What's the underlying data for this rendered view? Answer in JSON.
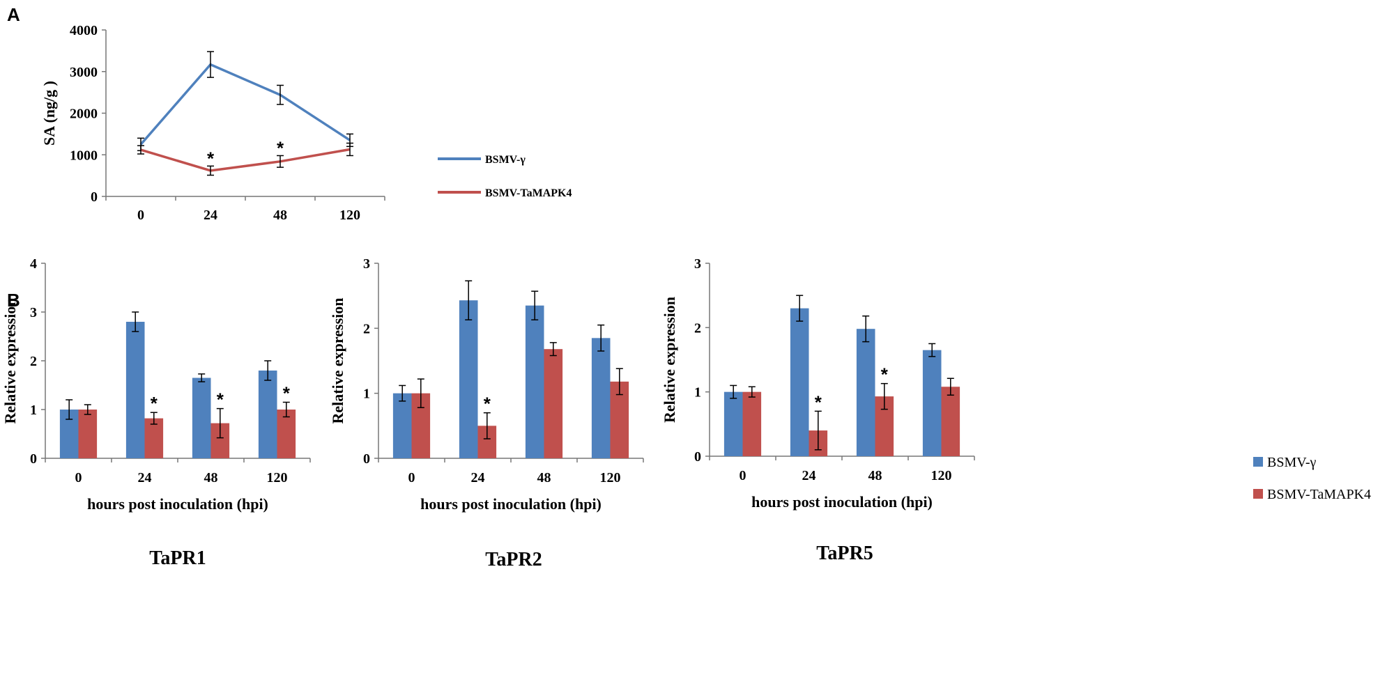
{
  "colors": {
    "blue": "#4F81BD",
    "red": "#C0504D"
  },
  "chart_data": [
    {
      "panel": "A",
      "type": "line",
      "categories": [
        "0",
        "24",
        "48",
        "120"
      ],
      "ylabel": "SA (ng/g )",
      "xlabel": "",
      "ylim": [
        0,
        4000
      ],
      "yticks": [
        0,
        1000,
        2000,
        3000,
        4000
      ],
      "series": [
        {
          "name": "BSMV-γ",
          "color": "#4F81BD",
          "values": [
            1250,
            3170,
            2440,
            1350
          ],
          "errors": [
            150,
            310,
            230,
            150
          ]
        },
        {
          "name": "BSMV-TaMAPK4",
          "color": "#C0504D",
          "values": [
            1120,
            620,
            840,
            1130
          ],
          "errors": [
            100,
            110,
            140,
            150
          ]
        }
      ],
      "significant": [
        "24",
        "48"
      ],
      "significance_mark": "*"
    },
    {
      "panel": "B",
      "type": "bar",
      "title": "TaPR1",
      "categories": [
        "0",
        "24",
        "48",
        "120"
      ],
      "ylabel": "Relative expression",
      "xlabel": "hours post inoculation (hpi)",
      "ylim": [
        0,
        4
      ],
      "yticks": [
        0,
        1,
        2,
        3,
        4
      ],
      "series": [
        {
          "name": "BSMV-γ",
          "color": "#4F81BD",
          "values": [
            1.0,
            2.8,
            1.65,
            1.8
          ],
          "errors": [
            0.2,
            0.2,
            0.08,
            0.2
          ]
        },
        {
          "name": "BSMV-TaMAPK4",
          "color": "#C0504D",
          "values": [
            1.0,
            0.82,
            0.72,
            1.0
          ],
          "errors": [
            0.1,
            0.12,
            0.3,
            0.15
          ]
        }
      ],
      "significant": [
        "24",
        "48",
        "120"
      ],
      "significance_mark": "*"
    },
    {
      "type": "bar",
      "title": "TaPR2",
      "categories": [
        "0",
        "24",
        "48",
        "120"
      ],
      "ylabel": "Relative expression",
      "xlabel": "hours post inoculation (hpi)",
      "ylim": [
        0,
        3
      ],
      "yticks": [
        0,
        1,
        2,
        3
      ],
      "series": [
        {
          "name": "BSMV-γ",
          "color": "#4F81BD",
          "values": [
            1.0,
            2.43,
            2.35,
            1.85
          ],
          "errors": [
            0.12,
            0.3,
            0.22,
            0.2
          ]
        },
        {
          "name": "BSMV-TaMAPK4",
          "color": "#C0504D",
          "values": [
            1.0,
            0.5,
            1.68,
            1.18
          ],
          "errors": [
            0.22,
            0.2,
            0.1,
            0.2
          ]
        }
      ],
      "significant": [
        "24"
      ],
      "significance_mark": "*"
    },
    {
      "type": "bar",
      "title": "TaPR5",
      "categories": [
        "0",
        "24",
        "48",
        "120"
      ],
      "ylabel": "Relative expression",
      "xlabel": "hours post inoculation (hpi)",
      "ylim": [
        0,
        3
      ],
      "yticks": [
        0,
        1,
        2,
        3
      ],
      "series": [
        {
          "name": "BSMV-γ",
          "color": "#4F81BD",
          "values": [
            1.0,
            2.3,
            1.98,
            1.65
          ],
          "errors": [
            0.1,
            0.2,
            0.2,
            0.1
          ]
        },
        {
          "name": "BSMV-TaMAPK4",
          "color": "#C0504D",
          "values": [
            1.0,
            0.4,
            0.93,
            1.08
          ],
          "errors": [
            0.08,
            0.3,
            0.2,
            0.13
          ]
        }
      ],
      "significant": [
        "24",
        "48"
      ],
      "significance_mark": "*"
    }
  ],
  "legend_a": {
    "items": [
      "BSMV-γ",
      "BSMV-TaMAPK4"
    ]
  },
  "legend_b": {
    "items": [
      "BSMV-γ",
      "BSMV-TaMAPK4"
    ]
  }
}
